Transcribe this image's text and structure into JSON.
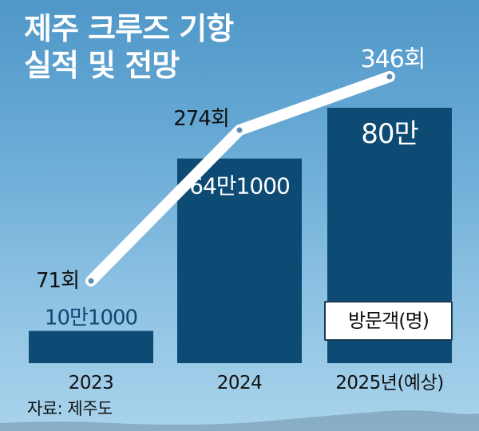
{
  "title_lines": [
    "제주 크루즈 기항",
    "실적 및 전망"
  ],
  "source": "자료: 제주도",
  "legend_label": "방문객(명)",
  "colors": {
    "bar": "#0d4a74",
    "line": "#ffffff",
    "value_on_bar": "#ffffff",
    "value_on_small_bar": "#0d4a74"
  },
  "chart_data": {
    "type": "bar",
    "categories": [
      "2023",
      "2024",
      "2025년(예상)"
    ],
    "series": [
      {
        "name": "방문객(명)",
        "values": [
          101000,
          641000,
          800000
        ],
        "labels": [
          "10만1000",
          "64만1000",
          "80만"
        ]
      },
      {
        "type": "line",
        "values": [
          71,
          274,
          346
        ],
        "labels": [
          "71회",
          "274회",
          "346회"
        ]
      }
    ]
  }
}
